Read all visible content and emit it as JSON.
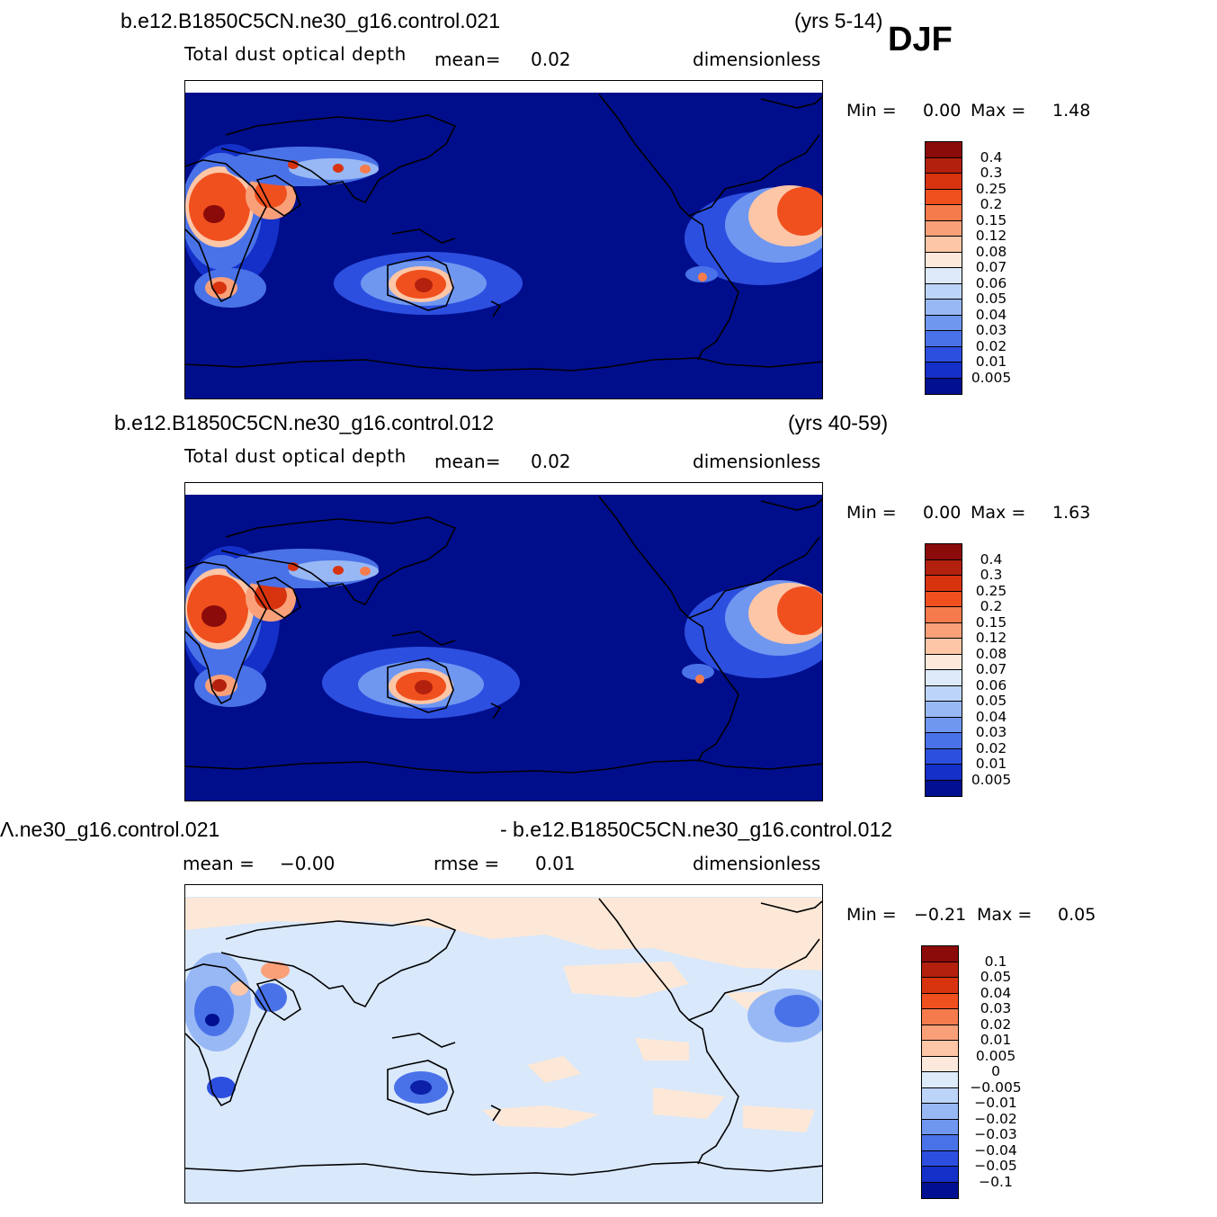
{
  "season": "DJF",
  "panels": [
    {
      "case": "b.e12.B1850C5CN.ne30_g16.control.021",
      "years": "(yrs 5-14)",
      "variable": "Total dust optical depth",
      "stat1_label": "mean=",
      "stat1_value": "0.02",
      "stat2_label": "",
      "stat2_value": "",
      "units": "dimensionless",
      "min_label": "Min =",
      "min_value": "0.00",
      "max_label": "Max =",
      "max_value": "1.48",
      "levels": [
        "0.4",
        "0.3",
        "0.25",
        "0.2",
        "0.15",
        "0.12",
        "0.08",
        "0.07",
        "0.06",
        "0.05",
        "0.04",
        "0.03",
        "0.02",
        "0.01",
        "0.005"
      ]
    },
    {
      "case": "b.e12.B1850C5CN.ne30_g16.control.012",
      "years": "(yrs 40-59)",
      "variable": "Total dust optical depth",
      "stat1_label": "mean=",
      "stat1_value": "0.02",
      "stat2_label": "",
      "stat2_value": "",
      "units": "dimensionless",
      "min_label": "Min =",
      "min_value": "0.00",
      "max_label": "Max =",
      "max_value": "1.63",
      "levels": [
        "0.4",
        "0.3",
        "0.25",
        "0.2",
        "0.15",
        "0.12",
        "0.08",
        "0.07",
        "0.06",
        "0.05",
        "0.04",
        "0.03",
        "0.02",
        "0.01",
        "0.005"
      ]
    },
    {
      "case_left": "Ʌ.ne30_g16.control.021",
      "case_right": "- b.e12.B1850C5CN.ne30_g16.control.012",
      "stat1_label": "mean =",
      "stat1_value": "−0.00",
      "stat2_label": "rmse =",
      "stat2_value": "0.01",
      "units": "dimensionless",
      "min_label": "Min =",
      "min_value": "−0.21",
      "max_label": "Max =",
      "max_value": "0.05",
      "levels": [
        "0.1",
        "0.05",
        "0.04",
        "0.03",
        "0.02",
        "0.01",
        "0.005",
        "0",
        "−0.005",
        "−0.01",
        "−0.02",
        "−0.03",
        "−0.04",
        "−0.05",
        "−0.1"
      ]
    }
  ],
  "colors": {
    "abs_scale": [
      "#8b0a0a",
      "#b3200e",
      "#d8330f",
      "#f0501e",
      "#f67b4c",
      "#f9a079",
      "#fcc6a7",
      "#fde9dc",
      "#dceaf9",
      "#bcd4f7",
      "#98b8f5",
      "#6f97f0",
      "#4a72e8",
      "#2d4fe0",
      "#1430c8",
      "#0b1fa8",
      "#001090"
    ],
    "diff_scale": [
      "#8b0a0a",
      "#b3200e",
      "#d8330f",
      "#f0501e",
      "#f67b4c",
      "#f9a079",
      "#fcc6a7",
      "#fde9dc",
      "#dceaf9",
      "#bcd4f7",
      "#98b8f5",
      "#6f97f0",
      "#4a72e8",
      "#2d4fe0",
      "#1430c8",
      "#0b1fa8",
      "#001090"
    ],
    "ocean_abs": "#000e8c",
    "diff_bg": "#d9e8fb",
    "diff_pos": "#fde8d7",
    "coast": "#000000"
  }
}
